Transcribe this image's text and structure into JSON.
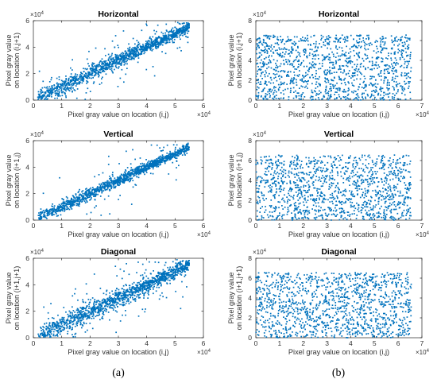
{
  "chart_data": [
    {
      "type": "scatter",
      "panel": "a",
      "title": "Horizontal",
      "xlabel": "Pixel gray value on location (i,j)",
      "ylabel": [
        "Pixel gray value",
        "on location (i,j+1)"
      ],
      "xlim": [
        0,
        6
      ],
      "ylim": [
        0,
        6
      ],
      "xticks": [
        "0",
        "1",
        "2",
        "3",
        "4",
        "5",
        "6"
      ],
      "yticks": [
        "0",
        "2",
        "4",
        "6"
      ],
      "axis_multiplier": "×10^4",
      "color": "#0072BD",
      "grid": false,
      "pattern": "diagonal",
      "spread": 0.32,
      "outlier_fraction": 0.1,
      "point_count": 1400,
      "seed": 11,
      "series": [
        {
          "x": [
            0.2,
            0.5,
            1,
            1.5,
            2,
            2.5,
            3,
            3.5,
            4,
            4.5,
            5,
            5.4
          ],
          "y": [
            0.3,
            0.6,
            1.1,
            1.6,
            2,
            2.5,
            3,
            3.5,
            4,
            4.5,
            5,
            5.4
          ]
        }
      ]
    },
    {
      "type": "scatter",
      "panel": "b",
      "title": "Horizontal",
      "xlabel": "Pixel gray value on location (i,j)",
      "ylabel": [
        "Pixel gray value",
        "on location (i,j+1)"
      ],
      "xlim": [
        0,
        7
      ],
      "ylim": [
        0,
        8
      ],
      "xticks": [
        "0",
        "1",
        "2",
        "3",
        "4",
        "5",
        "6",
        "7"
      ],
      "yticks": [
        "0",
        "2",
        "4",
        "6",
        "8"
      ],
      "axis_multiplier": "×10^4",
      "color": "#0072BD",
      "grid": false,
      "pattern": "uniform",
      "x_range": [
        0,
        6.55
      ],
      "y_range": [
        0,
        6.55
      ],
      "point_count": 1300,
      "seed": 23
    },
    {
      "type": "scatter",
      "panel": "a",
      "title": "Vertical",
      "xlabel": "Pixel gray value on location (i,j)",
      "ylabel": [
        "Pixel gray value",
        "on location (i+1,j)"
      ],
      "xlim": [
        0,
        6
      ],
      "ylim": [
        0,
        6
      ],
      "xticks": [
        "0",
        "1",
        "2",
        "3",
        "4",
        "5",
        "6"
      ],
      "yticks": [
        "0",
        "2",
        "4",
        "6"
      ],
      "axis_multiplier": "×10^4",
      "color": "#0072BD",
      "grid": false,
      "pattern": "diagonal",
      "spread": 0.25,
      "outlier_fraction": 0.06,
      "point_count": 1400,
      "seed": 37,
      "series": [
        {
          "x": [
            0.2,
            0.5,
            1,
            1.5,
            2,
            2.5,
            3,
            3.5,
            4,
            4.5,
            5,
            5.4
          ],
          "y": [
            0.2,
            0.5,
            1,
            1.5,
            2,
            2.5,
            3,
            3.5,
            4,
            4.5,
            5,
            5.4
          ]
        }
      ]
    },
    {
      "type": "scatter",
      "panel": "b",
      "title": "Vertical",
      "xlabel": "Pixel gray value on location (i,j)",
      "ylabel": [
        "Pixel gray value",
        "on location (i+1,j)"
      ],
      "xlim": [
        0,
        7
      ],
      "ylim": [
        0,
        8
      ],
      "xticks": [
        "0",
        "1",
        "2",
        "3",
        "4",
        "5",
        "6",
        "7"
      ],
      "yticks": [
        "0",
        "2",
        "4",
        "6",
        "8"
      ],
      "axis_multiplier": "×10^4",
      "color": "#0072BD",
      "grid": false,
      "pattern": "uniform",
      "x_range": [
        0,
        6.55
      ],
      "y_range": [
        0,
        6.55
      ],
      "point_count": 1300,
      "seed": 41
    },
    {
      "type": "scatter",
      "panel": "a",
      "title": "Diagonal",
      "xlabel": "Pixel gray value on location (i,j)",
      "ylabel": [
        "Pixel gray value",
        "on location (i+1,j+1)"
      ],
      "xlim": [
        0,
        6
      ],
      "ylim": [
        0,
        6
      ],
      "xticks": [
        "0",
        "1",
        "2",
        "3",
        "4",
        "5",
        "6"
      ],
      "yticks": [
        "0",
        "2",
        "4",
        "6"
      ],
      "axis_multiplier": "×10^4",
      "color": "#0072BD",
      "grid": false,
      "pattern": "diagonal",
      "spread": 0.38,
      "outlier_fraction": 0.14,
      "point_count": 1400,
      "seed": 53,
      "series": [
        {
          "x": [
            0.2,
            0.5,
            1,
            1.5,
            2,
            2.5,
            3,
            3.5,
            4,
            4.5,
            5,
            5.4
          ],
          "y": [
            0.3,
            0.6,
            1.1,
            1.6,
            2,
            2.5,
            3,
            3.5,
            4,
            4.5,
            5,
            5.4
          ]
        }
      ]
    },
    {
      "type": "scatter",
      "panel": "b",
      "title": "Diagonal",
      "xlabel": "Pixel gray value on location (i,j)",
      "ylabel": [
        "Pixel gray value",
        "on location (i+1,j+1)"
      ],
      "xlim": [
        0,
        7
      ],
      "ylim": [
        0,
        8
      ],
      "xticks": [
        "0",
        "1",
        "2",
        "3",
        "4",
        "5",
        "6",
        "7"
      ],
      "yticks": [
        "0",
        "2",
        "4",
        "6",
        "8"
      ],
      "axis_multiplier": "×10^4",
      "color": "#0072BD",
      "grid": false,
      "pattern": "uniform",
      "x_range": [
        0,
        6.55
      ],
      "y_range": [
        0,
        6.55
      ],
      "point_count": 1300,
      "seed": 67
    }
  ],
  "panel_labels": {
    "a": "(a)",
    "b": "(b)"
  },
  "exponent": {
    "base": "×10",
    "power": "4"
  }
}
